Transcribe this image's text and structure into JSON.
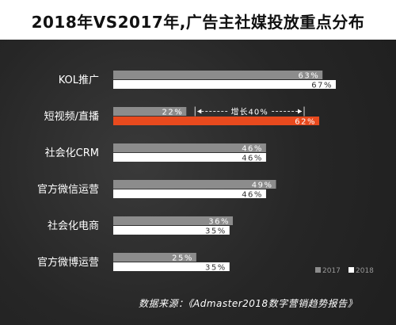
{
  "title": "2018年VS2017年,广告主社媒投放重点分布",
  "source": "数据来源：《Admaster2018数字营销趋势报告》",
  "colors": {
    "s2017": "#8c8c8c",
    "s2018": "#ffffff",
    "highlight": "#e84a1e"
  },
  "chart_data": {
    "type": "bar",
    "orientation": "horizontal",
    "categories": [
      "KOL推广",
      "短视频/直播",
      "社会化CRM",
      "官方微信运营",
      "社会化电商",
      "官方微博运营"
    ],
    "series": [
      {
        "name": "2017",
        "values": [
          63,
          22,
          46,
          49,
          36,
          25
        ]
      },
      {
        "name": "2018",
        "values": [
          67,
          62,
          46,
          46,
          35,
          35
        ]
      }
    ],
    "value_labels": [
      [
        "63%",
        "22%",
        "46%",
        "49%",
        "36%",
        "25%"
      ],
      [
        "67%",
        "62%",
        "46%",
        "46%",
        "35%",
        "35%"
      ]
    ],
    "highlight_category": "短视频/直播",
    "annotation": "增长40%",
    "legend": [
      "2017",
      "2018"
    ],
    "legend_position": "bottom-right",
    "xlim": [
      0,
      67
    ],
    "grid": false
  }
}
